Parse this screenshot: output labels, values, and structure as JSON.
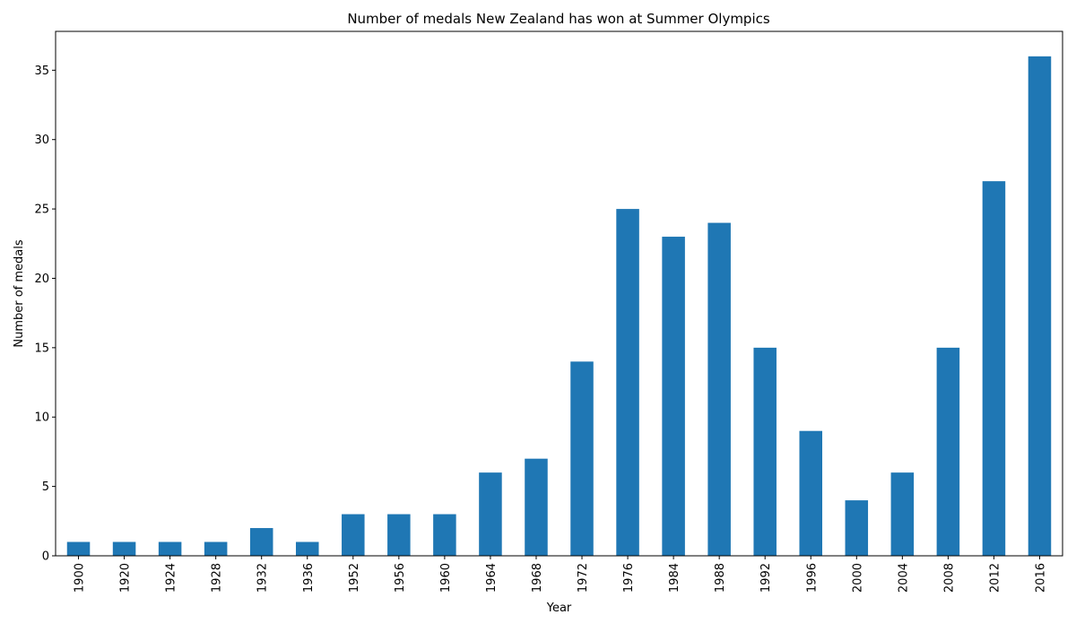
{
  "chart_data": {
    "type": "bar",
    "title": "Number of medals New Zealand has won at Summer Olympics",
    "xlabel": "Year",
    "ylabel": "Number of medals",
    "categories": [
      "1900",
      "1920",
      "1924",
      "1928",
      "1932",
      "1936",
      "1952",
      "1956",
      "1960",
      "1964",
      "1968",
      "1972",
      "1976",
      "1984",
      "1988",
      "1992",
      "1996",
      "2000",
      "2004",
      "2008",
      "2012",
      "2016"
    ],
    "values": [
      1,
      1,
      1,
      1,
      2,
      1,
      3,
      3,
      3,
      6,
      7,
      14,
      25,
      23,
      24,
      15,
      9,
      4,
      6,
      15,
      27,
      36
    ],
    "ylim": [
      0,
      37.8
    ],
    "yticks": [
      0,
      5,
      10,
      15,
      20,
      25,
      30,
      35
    ],
    "bar_color": "#1f77b4",
    "grid": false,
    "legend": "none",
    "x_tick_rotation": "vertical"
  }
}
